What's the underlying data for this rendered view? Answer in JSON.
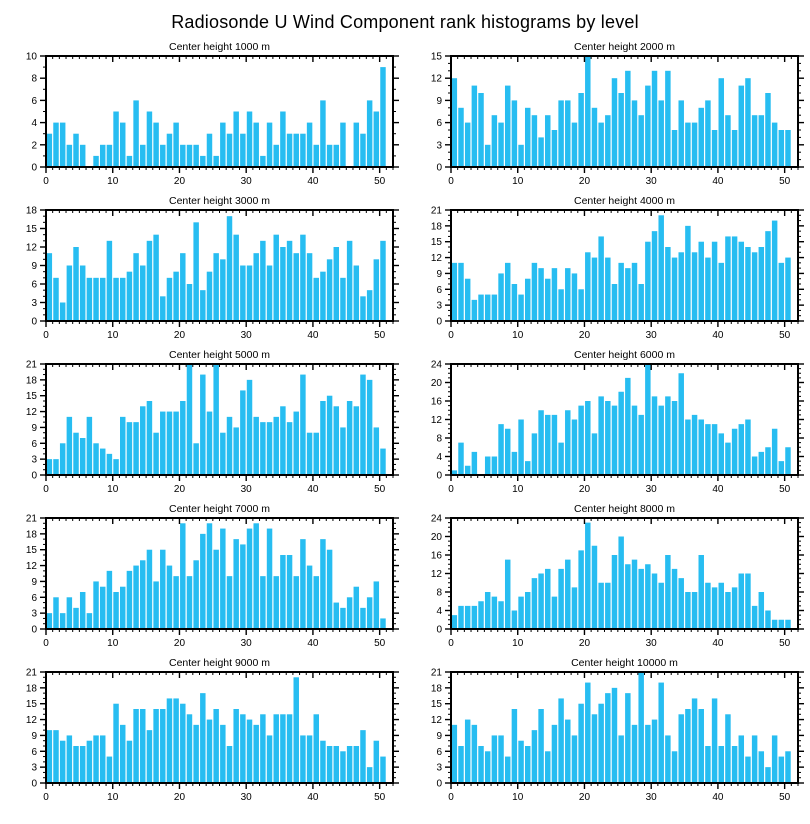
{
  "page": {
    "title": "Radiosonde U Wind Component rank histograms by level"
  },
  "chart_data": {
    "type": "bar",
    "title": "Radiosonde U Wind Component rank histograms by level",
    "subtype": "rank-histogram-grid",
    "bar_color": "#27BDF1",
    "frame_color": "#000000",
    "grid": "off",
    "legend": "none",
    "x_max": 52,
    "x_ticks": [
      0,
      10,
      20,
      30,
      40,
      50
    ],
    "n_bins": 51,
    "panels": [
      {
        "title": "Center height 1000 m",
        "ylim": [
          0,
          10
        ],
        "ystep": 2,
        "y_ticks": [
          0,
          2,
          4,
          6,
          8,
          10
        ],
        "values": [
          3,
          4,
          4,
          2,
          3,
          2,
          0,
          1,
          2,
          2,
          5,
          4,
          1,
          6,
          2,
          5,
          4,
          2,
          3,
          4,
          2,
          2,
          2,
          1,
          3,
          1,
          4,
          3,
          5,
          3,
          5,
          4,
          1,
          4,
          2,
          5,
          3,
          3,
          3,
          4,
          2,
          6,
          2,
          2,
          4,
          0,
          4,
          3,
          6,
          5,
          9
        ]
      },
      {
        "title": "Center height 2000 m",
        "ylim": [
          0,
          15
        ],
        "ystep": 3,
        "y_ticks": [
          0,
          3,
          6,
          9,
          12,
          15
        ],
        "values": [
          12,
          8,
          6,
          11,
          10,
          3,
          7,
          6,
          11,
          9,
          3,
          8,
          7,
          4,
          7,
          5,
          9,
          9,
          6,
          10,
          15,
          8,
          6,
          7,
          12,
          10,
          13,
          9,
          7,
          11,
          13,
          9,
          13,
          5,
          9,
          6,
          6,
          8,
          9,
          5,
          12,
          7,
          5,
          11,
          12,
          7,
          7,
          10,
          6,
          5,
          5
        ]
      },
      {
        "title": "Center height 3000 m",
        "ylim": [
          0,
          18
        ],
        "ystep": 3,
        "y_ticks": [
          0,
          3,
          6,
          9,
          12,
          15,
          18
        ],
        "values": [
          11,
          7,
          3,
          9,
          12,
          9,
          7,
          7,
          7,
          13,
          7,
          7,
          8,
          11,
          9,
          13,
          14,
          4,
          7,
          8,
          11,
          6,
          16,
          5,
          8,
          11,
          10,
          17,
          14,
          9,
          9,
          11,
          13,
          9,
          14,
          12,
          13,
          11,
          14,
          11,
          7,
          8,
          10,
          12,
          7,
          13,
          9,
          4,
          5,
          10,
          13
        ]
      },
      {
        "title": "Center height 4000 m",
        "ylim": [
          0,
          21
        ],
        "ystep": 3,
        "y_ticks": [
          0,
          3,
          6,
          9,
          12,
          15,
          18,
          21
        ],
        "values": [
          11,
          11,
          8,
          4,
          5,
          5,
          5,
          9,
          11,
          7,
          5,
          8,
          11,
          10,
          8,
          10,
          6,
          10,
          9,
          6,
          13,
          12,
          16,
          12,
          7,
          11,
          10,
          11,
          7,
          15,
          17,
          20,
          14,
          12,
          13,
          18,
          13,
          15,
          12,
          15,
          11,
          16,
          16,
          15,
          14,
          13,
          14,
          17,
          19,
          11,
          12
        ]
      },
      {
        "title": "Center height 5000 m",
        "ylim": [
          0,
          21
        ],
        "ystep": 3,
        "y_ticks": [
          0,
          3,
          6,
          9,
          12,
          15,
          18,
          21
        ],
        "values": [
          3,
          3,
          6,
          11,
          8,
          7,
          11,
          6,
          5,
          4,
          3,
          11,
          10,
          10,
          13,
          14,
          8,
          12,
          12,
          12,
          14,
          21,
          6,
          19,
          12,
          21,
          8,
          11,
          9,
          16,
          18,
          11,
          10,
          10,
          11,
          13,
          10,
          12,
          19,
          8,
          8,
          14,
          15,
          13,
          9,
          14,
          13,
          19,
          18,
          9,
          5
        ]
      },
      {
        "title": "Center height 6000 m",
        "ylim": [
          0,
          24
        ],
        "ystep": 4,
        "y_ticks": [
          0,
          4,
          8,
          12,
          16,
          20,
          24
        ],
        "values": [
          1,
          7,
          2,
          5,
          0,
          4,
          4,
          11,
          10,
          5,
          12,
          3,
          9,
          14,
          13,
          13,
          7,
          14,
          12,
          15,
          16,
          9,
          17,
          16,
          15,
          18,
          21,
          15,
          13,
          24,
          17,
          15,
          17,
          16,
          22,
          12,
          13,
          12,
          11,
          11,
          9,
          7,
          10,
          11,
          12,
          4,
          5,
          6,
          10,
          3,
          6
        ]
      },
      {
        "title": "Center height 7000 m",
        "ylim": [
          0,
          21
        ],
        "ystep": 3,
        "y_ticks": [
          0,
          3,
          6,
          9,
          12,
          15,
          18,
          21
        ],
        "values": [
          3,
          6,
          3,
          6,
          4,
          7,
          3,
          9,
          8,
          11,
          7,
          8,
          11,
          12,
          13,
          15,
          9,
          15,
          12,
          10,
          20,
          10,
          13,
          18,
          20,
          15,
          19,
          10,
          17,
          16,
          19,
          20,
          10,
          19,
          10,
          14,
          14,
          10,
          17,
          12,
          10,
          17,
          15,
          5,
          4,
          6,
          8,
          4,
          6,
          9,
          2
        ]
      },
      {
        "title": "Center height 8000 m",
        "ylim": [
          0,
          24
        ],
        "ystep": 4,
        "y_ticks": [
          0,
          4,
          8,
          12,
          16,
          20,
          24
        ],
        "values": [
          3,
          5,
          5,
          5,
          6,
          8,
          7,
          6,
          15,
          4,
          7,
          8,
          11,
          12,
          13,
          7,
          13,
          15,
          9,
          17,
          23,
          18,
          10,
          10,
          16,
          20,
          14,
          15,
          13,
          14,
          12,
          10,
          16,
          13,
          11,
          8,
          8,
          16,
          10,
          9,
          10,
          8,
          9,
          12,
          12,
          5,
          8,
          4,
          2,
          2,
          2
        ]
      },
      {
        "title": "Center height 9000 m",
        "ylim": [
          0,
          21
        ],
        "ystep": 3,
        "y_ticks": [
          0,
          3,
          6,
          9,
          12,
          15,
          18,
          21
        ],
        "values": [
          10,
          10,
          8,
          9,
          7,
          7,
          8,
          9,
          9,
          5,
          15,
          11,
          8,
          14,
          14,
          10,
          14,
          14,
          16,
          16,
          15,
          13,
          11,
          17,
          12,
          14,
          11,
          7,
          14,
          13,
          12,
          11,
          13,
          9,
          13,
          13,
          13,
          20,
          9,
          9,
          13,
          8,
          7,
          7,
          6,
          7,
          7,
          10,
          3,
          8,
          5
        ]
      },
      {
        "title": "Center height 10000 m",
        "ylim": [
          0,
          21
        ],
        "ystep": 3,
        "y_ticks": [
          0,
          3,
          6,
          9,
          12,
          15,
          18,
          21
        ],
        "values": [
          11,
          7,
          12,
          11,
          7,
          6,
          9,
          9,
          5,
          14,
          8,
          7,
          10,
          14,
          6,
          11,
          16,
          12,
          9,
          15,
          19,
          13,
          15,
          17,
          18,
          9,
          17,
          11,
          21,
          11,
          12,
          19,
          9,
          6,
          13,
          14,
          16,
          14,
          7,
          16,
          7,
          13,
          7,
          9,
          5,
          9,
          6,
          3,
          9,
          5,
          6
        ]
      }
    ]
  }
}
